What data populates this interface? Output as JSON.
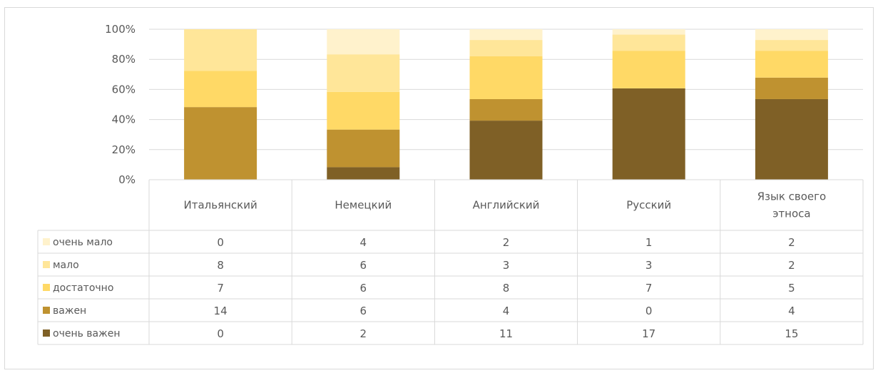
{
  "chart_data": {
    "type": "bar",
    "stacked": "percent",
    "categories": [
      "Итальянский",
      "Немецкий",
      "Английский",
      "Русский",
      "Язык своего этноса"
    ],
    "category_lines": [
      [
        "Итальянский"
      ],
      [
        "Немецкий"
      ],
      [
        "Английский"
      ],
      [
        "Русский"
      ],
      [
        "Язык своего",
        "этноса"
      ]
    ],
    "series": [
      {
        "name": "очень мало",
        "color": "#fff2cc",
        "values": [
          0,
          4,
          2,
          1,
          2
        ]
      },
      {
        "name": "мало",
        "color": "#ffe699",
        "values": [
          8,
          6,
          3,
          3,
          2
        ]
      },
      {
        "name": "достаточно",
        "color": "#ffd966",
        "values": [
          7,
          6,
          8,
          7,
          5
        ]
      },
      {
        "name": "важен",
        "color": "#bf9230",
        "values": [
          14,
          6,
          4,
          0,
          4
        ]
      },
      {
        "name": "очень важен",
        "color": "#7f6026",
        "values": [
          0,
          2,
          11,
          17,
          15
        ]
      }
    ],
    "stack_order_bottom_to_top": [
      "очень важен",
      "важен",
      "достаточно",
      "мало",
      "очень мало"
    ],
    "yticks": [
      "0%",
      "20%",
      "40%",
      "60%",
      "80%",
      "100%"
    ],
    "ylim": [
      0,
      100
    ],
    "grid": true,
    "legend": "data-table",
    "title": "",
    "xlabel": "",
    "ylabel": ""
  }
}
